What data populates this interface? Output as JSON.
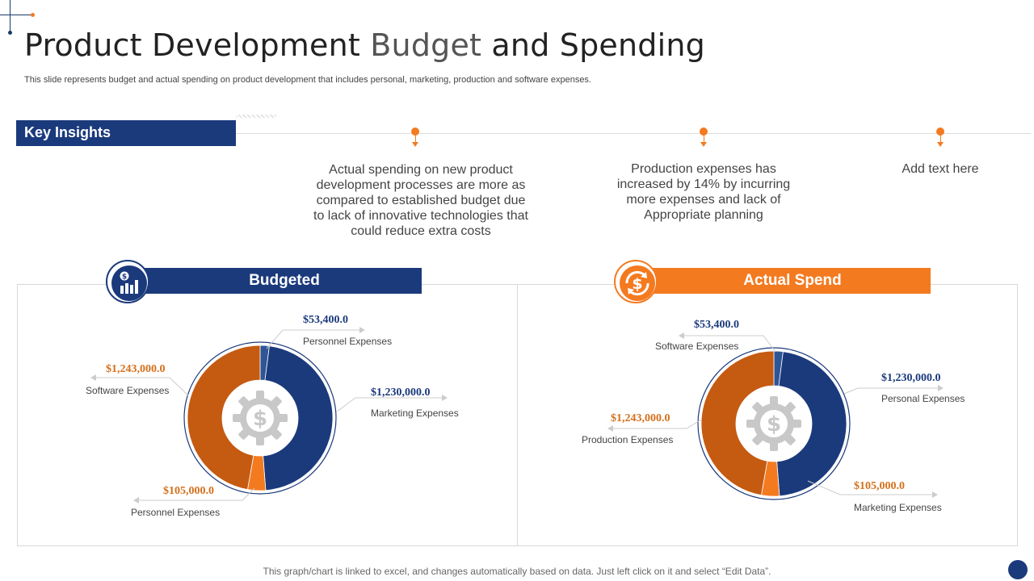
{
  "title": {
    "part1": "Product Development ",
    "part2": "Budget",
    "part3": " and Spending"
  },
  "subtitle": "This slide represents budget and actual spending on product development that includes personal, marketing, production and software expenses.",
  "key_insights": {
    "label": "Key Insights",
    "items": [
      "Actual spending on new product development processes are more as compared to established budget due to lack of innovative technologies that could reduce extra costs",
      "Production expenses has increased by 14% by incurring more expenses and lack of Appropriate planning",
      "Add text here"
    ]
  },
  "colors": {
    "navy": "#1b3a7c",
    "orange": "#f47a20",
    "burnt_orange": "#c55a11"
  },
  "icons": [
    "dollar-chart-icon",
    "dollar-cycle-icon",
    "dollar-gear-icon"
  ],
  "chart_data": [
    {
      "type": "pie",
      "title": "Budgeted",
      "slices": [
        {
          "label": "Personnel Expenses",
          "value": 53400.0,
          "display": "$53,400.0",
          "color": "#2e5596"
        },
        {
          "label": "Marketing Expenses",
          "value": 1230000.0,
          "display": "$1,230,000.0",
          "color": "#1b3a7c"
        },
        {
          "label": "Personnel Expenses",
          "value": 105000.0,
          "display": "$105,000.0",
          "color": "#f47a20"
        },
        {
          "label": "Software Expenses",
          "value": 1243000.0,
          "display": "$1,243,000.0",
          "color": "#c55a11"
        }
      ]
    },
    {
      "type": "pie",
      "title": "Actual Spend",
      "slices": [
        {
          "label": "Software Expenses",
          "value": 53400.0,
          "display": "$53,400.0",
          "color": "#2e5596"
        },
        {
          "label": "Personal Expenses",
          "value": 1230000.0,
          "display": "$1,230,000.0",
          "color": "#1b3a7c"
        },
        {
          "label": "Marketing Expenses",
          "value": 105000.0,
          "display": "$105,000.0",
          "color": "#f47a20"
        },
        {
          "label": "Production Expenses",
          "value": 1243000.0,
          "display": "$1,243,000.0",
          "color": "#c55a11"
        }
      ]
    }
  ],
  "footer": "This graph/chart is linked to excel,  and changes automatically based on data. Just left click on it and select “Edit Data”."
}
